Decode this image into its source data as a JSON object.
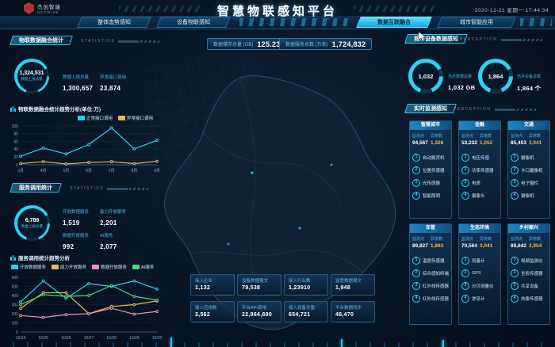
{
  "header": {
    "logo_name": "杰创智能",
    "logo_sub": "NEXWISE",
    "title": "智慧物联感知平台",
    "datetime": "2020-12-21 星期一 17:44:34",
    "tabs": [
      {
        "label": "整体态势感知",
        "active": false
      },
      {
        "label": "设备物联感知",
        "active": false
      },
      {
        "label": "数据互联融合",
        "active": true
      },
      {
        "label": "城市智能应用",
        "active": false
      }
    ]
  },
  "left": {
    "panel1": {
      "title": "物联数据融合统计",
      "subtitle": "STATISTICS",
      "donut": {
        "value": "1,324,531",
        "label": "数据上报总量"
      },
      "stats": [
        {
          "label": "数据上报总量",
          "value": "1,300,657"
        },
        {
          "label": "异常接口调用",
          "value": "23,874"
        }
      ]
    },
    "panel3": {
      "title": "服务调用统计",
      "subtitle": "STATISTICS",
      "donut": {
        "value": "6,789",
        "label": "数据上报总量"
      },
      "stats": [
        {
          "label": "开放数据服务",
          "value": "1,519"
        },
        {
          "label": "能力开放服务",
          "value": "2,201"
        },
        {
          "label": "数据开放服务",
          "value": "992"
        },
        {
          "label": "AI服务",
          "value": "2,077"
        }
      ]
    }
  },
  "center": {
    "top_stats": [
      {
        "label": "数据储存总量 (GB)",
        "value": "125.23"
      },
      {
        "label": "数据服务总数 (万条)",
        "value": "1,724,832"
      }
    ],
    "bottom_stats": [
      {
        "label": "接入企业",
        "value": "1,132"
      },
      {
        "label": "设备数据报文",
        "value": "79,538"
      },
      {
        "label": "接入行业数",
        "value": "1,23910"
      },
      {
        "label": "监管数据报文",
        "value": "1,948"
      },
      {
        "label": "接入应用数",
        "value": "3,562"
      },
      {
        "label": "平台API调用",
        "value": "22,864,690"
      },
      {
        "label": "接入设备总量",
        "value": "654,721"
      },
      {
        "label": "平台数据同步",
        "value": "46,470"
      }
    ]
  },
  "right": {
    "overview": {
      "title": "城市设备数据感知",
      "subtitle": "PERCEPTION",
      "gauges": [
        {
          "value": "1,032",
          "label": "当月数据总量",
          "detail": "1,032 GB"
        },
        {
          "value": "1,864",
          "label": "当月设备总数",
          "detail": "1,864 个"
        }
      ]
    },
    "monitor": {
      "title": "实时监测感知",
      "subtitle": "PERCEPTION"
    },
    "cards_common": {
      "point_label": "监测点",
      "abnormal_label": "异常数"
    },
    "cards": [
      {
        "name": "智慧城市",
        "point": "94,567",
        "abnormal": "1,326",
        "items": [
          "自动贩货机",
          "位置传感器",
          "光传感器",
          "智能照明"
        ]
      },
      {
        "name": "金融",
        "point": "53,232",
        "abnormal": "1,052",
        "items": [
          "电压传感",
          "功率传感器",
          "电表",
          "摄像头"
        ]
      },
      {
        "name": "交通",
        "point": "85,453",
        "abnormal": "2,041",
        "items": [
          "摄像机",
          "卡口摄像机",
          "电子围栏",
          "摄像机"
        ]
      },
      {
        "name": "车管",
        "point": "89,827",
        "abnormal": "1,863",
        "items": [
          "温度传感器",
          "综合感知终端",
          "红外线传感器",
          "红外线传感器"
        ]
      },
      {
        "name": "生态环境",
        "point": "70,564",
        "abnormal": "3,041",
        "items": [
          "雨量计",
          "GPS",
          "分贝测量仪",
          "渗流计"
        ]
      },
      {
        "name": "乡村振兴",
        "point": "89,642",
        "abnormal": "2,954",
        "items": [
          "视频监测仪",
          "全彩传感器",
          "共享设备",
          "热像传感器"
        ]
      }
    ]
  },
  "chart_data": [
    {
      "id": "iot_fusion_trend",
      "type": "line",
      "title": "物联数据融合统计趋势分析(单位:万)",
      "categories": [
        "3月",
        "4月",
        "5月",
        "6月",
        "7月",
        "8月",
        "9月"
      ],
      "ylim": [
        0,
        100
      ],
      "yticks": [
        0,
        20,
        40,
        60,
        80,
        100
      ],
      "grid": false,
      "legend_position": "top-right",
      "series": [
        {
          "name": "正常接口调用",
          "color": "#29d3f5",
          "values": [
            22,
            43,
            28,
            52,
            95,
            41,
            63
          ]
        },
        {
          "name": "异常接口调用",
          "color": "#e8b461",
          "values": [
            3,
            8,
            2,
            6,
            8,
            3,
            9
          ]
        }
      ]
    },
    {
      "id": "service_call_trend",
      "type": "line",
      "title": "服务调用统计趋势分析",
      "categories": [
        "10/24",
        "10/25",
        "10/26",
        "10/27",
        "10/28",
        "10/29",
        "10/30"
      ],
      "ylim": [
        0,
        600
      ],
      "yticks": [
        0,
        100,
        200,
        300,
        400,
        500,
        600
      ],
      "grid": false,
      "legend_position": "top",
      "series": [
        {
          "name": "开放数据服务",
          "color": "#29d3f5",
          "values": [
            330,
            560,
            370,
            530,
            500,
            560,
            470
          ]
        },
        {
          "name": "能力开放服务",
          "color": "#e8b461",
          "values": [
            260,
            430,
            430,
            200,
            280,
            300,
            340
          ]
        },
        {
          "name": "数据开放服务",
          "color": "#f48fb8",
          "values": [
            180,
            160,
            190,
            200,
            260,
            195,
            225
          ]
        },
        {
          "name": "AI服务",
          "color": "#43d97c",
          "values": [
            300,
            410,
            390,
            400,
            510,
            390,
            350
          ]
        }
      ]
    }
  ]
}
